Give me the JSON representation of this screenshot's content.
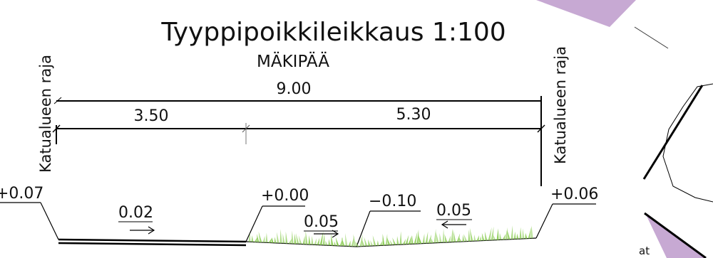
{
  "title": "Tyyppipoikkileikkaus 1:100",
  "subtitle": "MÄKIPÄÄ",
  "boundary_label_left": "Katualueen raja",
  "boundary_label_right": "Katualueen raja",
  "dimensions": {
    "total": "9.00",
    "left_part": "3.50",
    "right_part": "5.30"
  },
  "elevations": {
    "left_edge": "+0.07",
    "center": "+0.00",
    "ditch": "−0.10",
    "right_edge": "+0.06"
  },
  "slopes": {
    "pavement": "0.02",
    "grass_left": "0.05",
    "grass_right": "0.05"
  },
  "map_text": "at",
  "colors": {
    "purple": "#c7a9d3",
    "grass": "#8fce5a"
  }
}
